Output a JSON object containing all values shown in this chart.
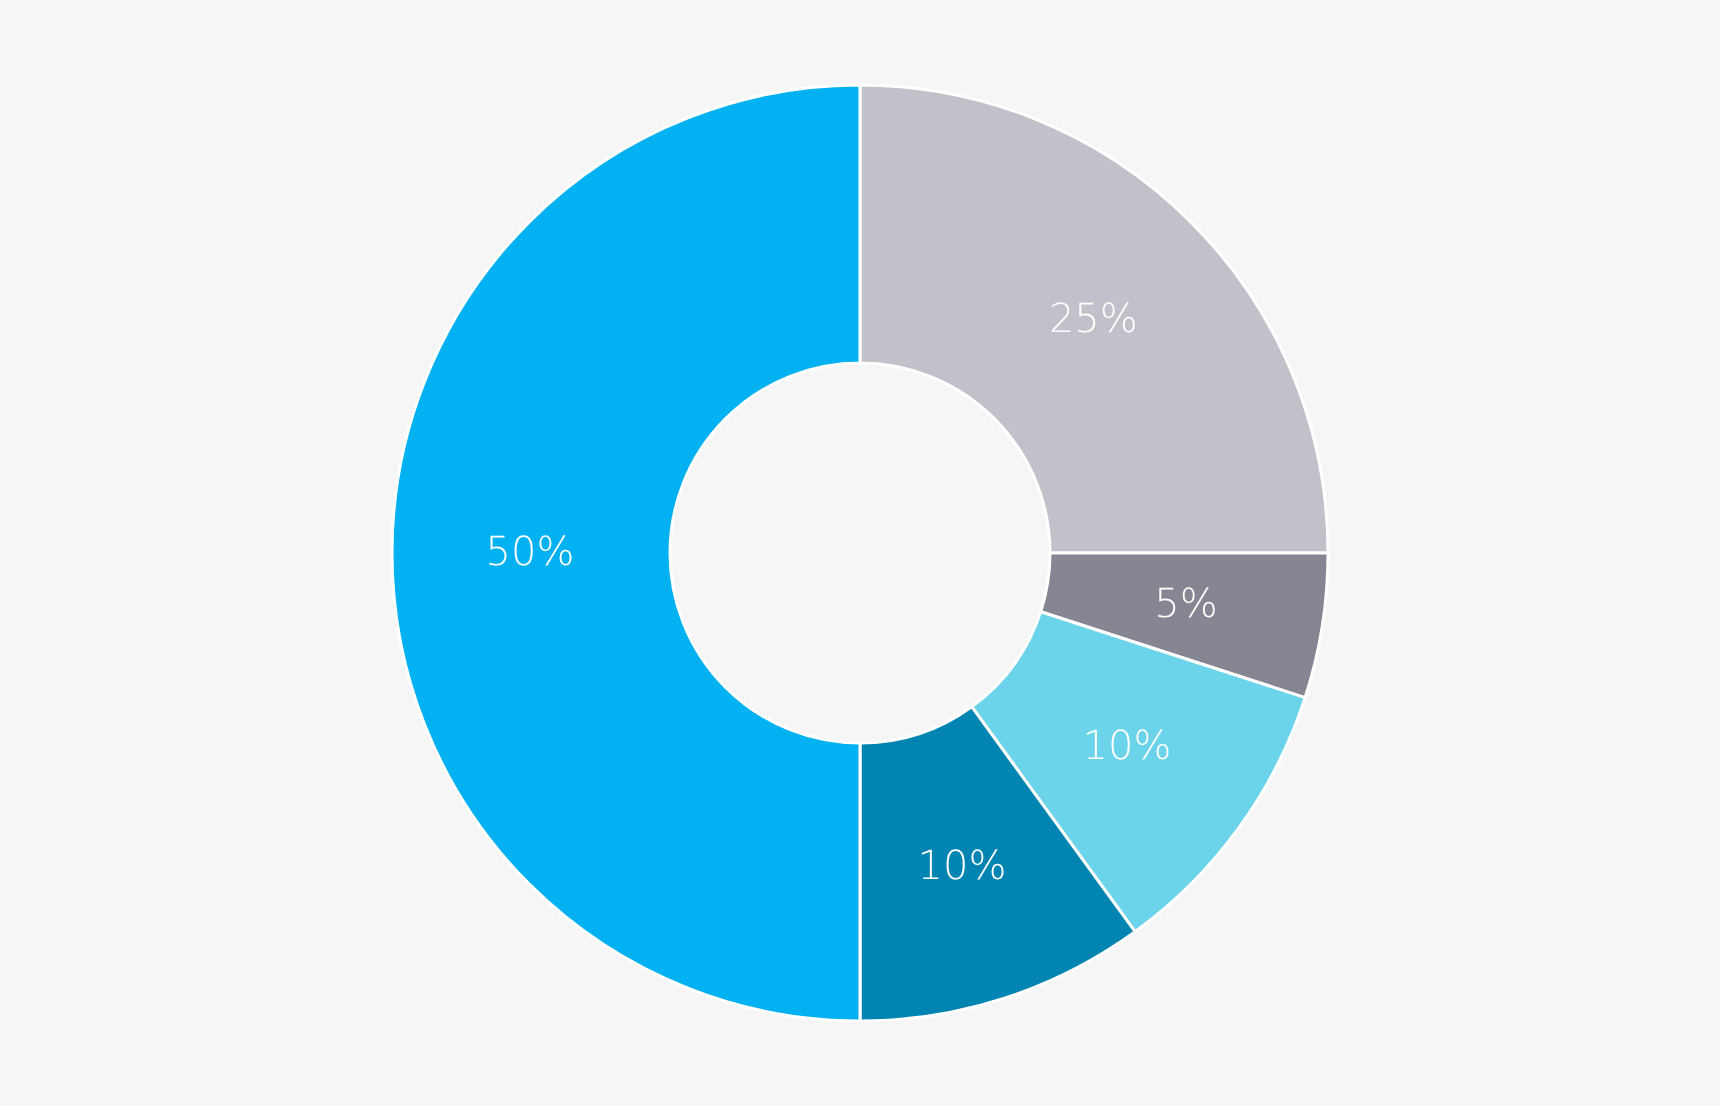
{
  "chart_data": {
    "type": "donut",
    "categories": [
      null,
      null,
      null,
      null,
      null
    ],
    "values": [
      25,
      5,
      10,
      10,
      50
    ],
    "colors": [
      "#c1c1c9",
      "#868592",
      "#6bd4ea",
      "#0085b3",
      "#02b1f1"
    ],
    "value_labels": [
      "25%",
      "5%",
      "10%",
      "10%",
      "50%"
    ]
  }
}
